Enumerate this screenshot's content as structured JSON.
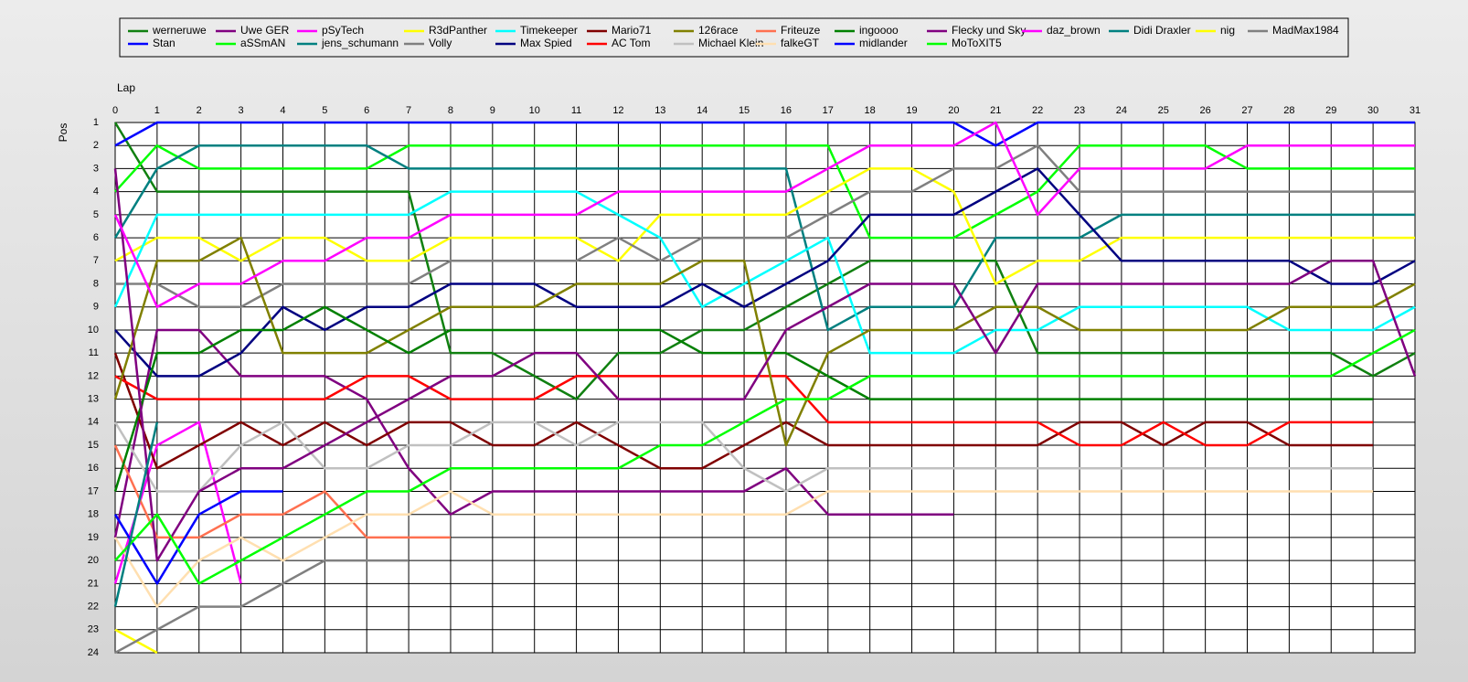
{
  "chart_data": {
    "type": "line",
    "x_label": "Lap",
    "y_label": "Pos",
    "y_reversed": true,
    "grid": true,
    "x": [
      0,
      1,
      2,
      3,
      4,
      5,
      6,
      7,
      8,
      9,
      10,
      11,
      12,
      13,
      14,
      15,
      16,
      17,
      18,
      19,
      20,
      21,
      22,
      23,
      24,
      25,
      26,
      27,
      28,
      29,
      30,
      31
    ],
    "xlim": [
      0,
      31
    ],
    "xticks": [
      0,
      1,
      2,
      3,
      4,
      5,
      6,
      7,
      8,
      9,
      10,
      11,
      12,
      13,
      14,
      15,
      16,
      17,
      18,
      19,
      20,
      21,
      22,
      23,
      24,
      25,
      26,
      27,
      28,
      29,
      30,
      31
    ],
    "ylim": [
      1,
      24
    ],
    "yticks": [
      1,
      2,
      3,
      4,
      5,
      6,
      7,
      8,
      9,
      10,
      11,
      12,
      13,
      14,
      15,
      16,
      17,
      18,
      19,
      20,
      21,
      22,
      23,
      24
    ],
    "series": [
      {
        "name": "werneruwe",
        "color": "#108010",
        "values": [
          1,
          4,
          4,
          4,
          4,
          4,
          4,
          4,
          11,
          11,
          12,
          13,
          11,
          11,
          10,
          10,
          9,
          8,
          7,
          7,
          7,
          7,
          11,
          11,
          11,
          11,
          11,
          11,
          11,
          11,
          12,
          11
        ]
      },
      {
        "name": "Stan",
        "color": "#0000ff",
        "values": [
          2,
          1,
          1,
          1,
          1,
          1,
          1,
          1,
          1,
          1,
          1,
          1,
          1,
          1,
          1,
          1,
          1,
          1,
          1,
          1,
          1,
          2,
          1,
          1,
          1,
          1,
          1,
          1,
          1,
          1,
          1,
          1
        ]
      },
      {
        "name": "Uwe GER",
        "color": "#800080",
        "values": [
          19,
          10,
          10,
          12,
          12,
          12,
          13,
          16,
          18,
          17,
          17,
          17,
          17,
          17,
          17,
          17,
          16,
          18,
          18,
          18,
          18,
          null,
          null,
          null,
          null,
          null,
          null,
          null,
          null,
          null,
          null,
          null
        ]
      },
      {
        "name": "aSSmAN",
        "color": "#00ff00",
        "values": [
          4,
          2,
          3,
          3,
          3,
          3,
          3,
          2,
          2,
          2,
          2,
          2,
          2,
          2,
          2,
          2,
          2,
          2,
          6,
          6,
          6,
          5,
          4,
          2,
          2,
          2,
          2,
          3,
          3,
          3,
          3,
          3
        ]
      },
      {
        "name": "pSyTech",
        "color": "#ff00ff",
        "values": [
          21,
          15,
          14,
          21,
          null,
          null,
          null,
          null,
          null,
          null,
          null,
          null,
          null,
          null,
          null,
          null,
          null,
          null,
          null,
          null,
          null,
          null,
          null,
          null,
          null,
          null,
          null,
          null,
          null,
          null,
          null,
          null
        ]
      },
      {
        "name": "jens_schumann",
        "color": "#008080",
        "values": [
          6,
          3,
          2,
          2,
          2,
          2,
          2,
          3,
          3,
          3,
          3,
          3,
          3,
          3,
          3,
          3,
          3,
          10,
          9,
          9,
          9,
          6,
          6,
          6,
          5,
          5,
          5,
          5,
          5,
          5,
          5,
          5
        ]
      },
      {
        "name": "R3dPanther",
        "color": "#ffff00",
        "values": [
          7,
          6,
          6,
          7,
          6,
          6,
          7,
          7,
          6,
          6,
          6,
          6,
          7,
          5,
          5,
          5,
          5,
          4,
          3,
          3,
          4,
          8,
          7,
          7,
          6,
          6,
          6,
          6,
          6,
          6,
          6,
          6
        ]
      },
      {
        "name": "Volly",
        "color": "#808080",
        "values": [
          8,
          8,
          9,
          9,
          8,
          8,
          8,
          8,
          7,
          7,
          7,
          7,
          6,
          7,
          6,
          6,
          6,
          5,
          4,
          4,
          3,
          3,
          2,
          4,
          4,
          4,
          4,
          4,
          4,
          4,
          4,
          4
        ]
      },
      {
        "name": "Timekeeper",
        "color": "#00ffff",
        "values": [
          9,
          5,
          5,
          5,
          5,
          5,
          5,
          5,
          4,
          4,
          4,
          4,
          5,
          6,
          9,
          8,
          7,
          6,
          11,
          11,
          11,
          10,
          10,
          9,
          9,
          9,
          9,
          9,
          10,
          10,
          10,
          9
        ]
      },
      {
        "name": "Max Spied",
        "color": "#000080",
        "values": [
          10,
          12,
          12,
          11,
          9,
          10,
          9,
          9,
          8,
          8,
          8,
          9,
          9,
          9,
          8,
          9,
          8,
          7,
          5,
          5,
          5,
          4,
          3,
          5,
          7,
          7,
          7,
          7,
          7,
          8,
          8,
          7
        ]
      },
      {
        "name": "Mario71",
        "color": "#800000",
        "values": [
          11,
          16,
          15,
          14,
          15,
          14,
          15,
          14,
          14,
          15,
          15,
          14,
          15,
          16,
          16,
          15,
          14,
          15,
          15,
          15,
          15,
          15,
          15,
          14,
          14,
          15,
          14,
          14,
          15,
          15,
          15,
          null
        ]
      },
      {
        "name": "AC Tom",
        "color": "#ff0000",
        "values": [
          12,
          13,
          13,
          13,
          13,
          13,
          12,
          12,
          13,
          13,
          13,
          12,
          12,
          12,
          12,
          12,
          12,
          14,
          14,
          14,
          14,
          14,
          14,
          15,
          15,
          14,
          15,
          15,
          14,
          14,
          14,
          null
        ]
      },
      {
        "name": "126race",
        "color": "#808000",
        "values": [
          13,
          7,
          7,
          6,
          11,
          11,
          11,
          10,
          9,
          9,
          9,
          8,
          8,
          8,
          7,
          7,
          15,
          11,
          10,
          10,
          10,
          9,
          9,
          10,
          10,
          10,
          10,
          10,
          9,
          9,
          9,
          8
        ]
      },
      {
        "name": "Michael Klein",
        "color": "#c0c0c0",
        "values": [
          14,
          17,
          17,
          15,
          14,
          16,
          16,
          15,
          15,
          14,
          14,
          15,
          14,
          14,
          14,
          16,
          17,
          16,
          16,
          16,
          16,
          16,
          16,
          16,
          16,
          16,
          16,
          16,
          16,
          16,
          16,
          null
        ]
      },
      {
        "name": "Friteuze",
        "color": "#ff7050",
        "values": [
          15,
          19,
          19,
          18,
          18,
          17,
          19,
          19,
          19,
          null,
          null,
          null,
          null,
          null,
          null,
          null,
          null,
          null,
          null,
          null,
          null,
          null,
          null,
          null,
          null,
          null,
          null,
          null,
          null,
          null,
          null,
          null
        ]
      },
      {
        "name": "falkeGT",
        "color": "#ffdfb0",
        "values": [
          19,
          22,
          20,
          19,
          20,
          19,
          18,
          18,
          17,
          18,
          18,
          18,
          18,
          18,
          18,
          18,
          18,
          17,
          17,
          17,
          17,
          17,
          17,
          17,
          17,
          17,
          17,
          17,
          17,
          17,
          17,
          null
        ]
      },
      {
        "name": "ingoooo",
        "color": "#008000",
        "values": [
          17,
          11,
          11,
          10,
          10,
          9,
          10,
          11,
          10,
          10,
          10,
          10,
          10,
          10,
          11,
          11,
          11,
          12,
          13,
          13,
          13,
          13,
          13,
          13,
          13,
          13,
          13,
          13,
          13,
          13,
          13,
          null
        ]
      },
      {
        "name": "midlander",
        "color": "#0000ff",
        "values": [
          18,
          21,
          18,
          17,
          17,
          null,
          null,
          null,
          null,
          null,
          null,
          null,
          null,
          null,
          null,
          null,
          null,
          null,
          null,
          null,
          null,
          null,
          null,
          null,
          null,
          null,
          null,
          null,
          null,
          null,
          null,
          null
        ]
      },
      {
        "name": "Flecky und Sky",
        "color": "#800080",
        "values": [
          3,
          20,
          17,
          16,
          16,
          15,
          14,
          13,
          12,
          12,
          11,
          11,
          13,
          13,
          13,
          13,
          10,
          9,
          8,
          8,
          8,
          11,
          8,
          8,
          8,
          8,
          8,
          8,
          8,
          7,
          7,
          12
        ]
      },
      {
        "name": "MoToXIT5",
        "color": "#00ff00",
        "values": [
          20,
          18,
          21,
          20,
          19,
          18,
          17,
          17,
          16,
          16,
          16,
          16,
          16,
          15,
          15,
          14,
          13,
          13,
          12,
          12,
          12,
          12,
          12,
          12,
          12,
          12,
          12,
          12,
          12,
          12,
          11,
          10
        ]
      },
      {
        "name": "daz_brown",
        "color": "#ff00ff",
        "values": [
          5,
          9,
          8,
          8,
          7,
          7,
          6,
          6,
          5,
          5,
          5,
          5,
          4,
          4,
          4,
          4,
          4,
          3,
          2,
          2,
          2,
          1,
          5,
          3,
          3,
          3,
          3,
          2,
          2,
          2,
          2,
          2
        ]
      },
      {
        "name": "Didi Draxler",
        "color": "#008080",
        "values": [
          22,
          14,
          null,
          null,
          null,
          null,
          null,
          null,
          null,
          null,
          null,
          null,
          null,
          null,
          null,
          null,
          null,
          null,
          null,
          null,
          null,
          null,
          null,
          null,
          null,
          null,
          null,
          null,
          null,
          null,
          null,
          null
        ]
      },
      {
        "name": "nig",
        "color": "#ffff00",
        "values": [
          23,
          24,
          null,
          null,
          null,
          null,
          null,
          null,
          null,
          null,
          null,
          null,
          null,
          null,
          null,
          null,
          null,
          null,
          null,
          null,
          null,
          null,
          null,
          null,
          null,
          null,
          null,
          null,
          null,
          null,
          null,
          null
        ]
      },
      {
        "name": "MadMax1984",
        "color": "#808080",
        "values": [
          24,
          23,
          22,
          22,
          21,
          20,
          20,
          20,
          null,
          null,
          null,
          null,
          null,
          null,
          null,
          null,
          null,
          null,
          null,
          null,
          null,
          null,
          null,
          null,
          null,
          null,
          null,
          null,
          null,
          null,
          null,
          null
        ]
      }
    ]
  }
}
